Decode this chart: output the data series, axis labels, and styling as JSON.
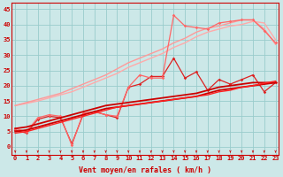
{
  "bg_color": "#cce8e8",
  "grid_color": "#99cccc",
  "xlabel": "Vent moyen/en rafales ( km/h )",
  "xlim": [
    -0.3,
    23.3
  ],
  "ylim": [
    -2.5,
    47
  ],
  "yticks": [
    0,
    5,
    10,
    15,
    20,
    25,
    30,
    35,
    40,
    45
  ],
  "x": [
    0,
    1,
    2,
    3,
    4,
    5,
    6,
    7,
    8,
    9,
    10,
    11,
    12,
    13,
    14,
    15,
    16,
    17,
    18,
    19,
    20,
    21,
    22,
    23
  ],
  "line_fan1": [
    13.5,
    14.2,
    15.0,
    16.0,
    17.0,
    18.0,
    19.5,
    21.0,
    22.5,
    24.0,
    26.0,
    27.5,
    29.0,
    30.5,
    32.5,
    34.0,
    36.0,
    37.5,
    38.5,
    39.5,
    40.0,
    41.0,
    40.5,
    35.0
  ],
  "line_fan1_color": "#ffaaaa",
  "line_fan1_lw": 1.0,
  "line_fan2": [
    13.5,
    14.5,
    15.5,
    16.5,
    17.5,
    19.0,
    20.5,
    22.0,
    23.5,
    25.5,
    27.5,
    29.0,
    30.5,
    32.0,
    34.0,
    35.5,
    37.5,
    38.8,
    39.5,
    40.5,
    41.5,
    41.5,
    38.5,
    33.5
  ],
  "line_fan2_color": "#ff9999",
  "line_fan2_lw": 1.0,
  "line_jagged1": [
    5.5,
    4.5,
    9.0,
    10.0,
    9.5,
    1.0,
    10.5,
    11.5,
    10.5,
    9.5,
    19.5,
    20.5,
    23.0,
    23.0,
    29.0,
    22.5,
    24.5,
    18.5,
    22.0,
    20.5,
    22.0,
    23.5,
    18.0,
    21.0
  ],
  "line_jagged1_color": "#dd2222",
  "line_jagged1_lw": 0.9,
  "line_jagged2": [
    6.0,
    5.0,
    9.5,
    10.5,
    10.0,
    0.5,
    11.0,
    11.5,
    10.5,
    10.0,
    19.5,
    23.5,
    22.5,
    22.5,
    43.0,
    39.5,
    39.0,
    38.5,
    40.5,
    41.0,
    41.5,
    41.5,
    38.0,
    34.0
  ],
  "line_jagged2_color": "#ff6666",
  "line_jagged2_lw": 0.9,
  "line_trend1": [
    5.0,
    5.5,
    6.5,
    7.5,
    8.5,
    9.5,
    10.5,
    11.5,
    12.5,
    13.0,
    13.5,
    14.0,
    14.5,
    15.0,
    15.5,
    16.0,
    16.5,
    17.5,
    18.5,
    19.0,
    19.5,
    20.0,
    20.5,
    21.0
  ],
  "line_trend1_color": "#cc0000",
  "line_trend1_lw": 1.3,
  "line_trend2": [
    6.0,
    6.5,
    7.5,
    8.5,
    9.5,
    10.5,
    11.5,
    12.5,
    13.5,
    14.0,
    14.5,
    15.0,
    15.5,
    16.0,
    16.5,
    17.0,
    17.5,
    18.5,
    19.5,
    20.0,
    20.5,
    21.0,
    21.0,
    21.0
  ],
  "line_trend2_color": "#cc0000",
  "line_trend2_lw": 1.3,
  "line_trend3": [
    4.5,
    5.0,
    6.0,
    7.0,
    8.0,
    9.0,
    10.0,
    11.0,
    12.0,
    13.0,
    13.5,
    14.0,
    14.5,
    15.0,
    15.5,
    16.0,
    16.5,
    17.0,
    18.0,
    18.5,
    19.5,
    20.0,
    20.8,
    21.5
  ],
  "line_trend3_color": "#ff2222",
  "line_trend3_lw": 1.0,
  "arrow_color": "#cc0000",
  "axis_color": "#cc0000",
  "tick_fontsize": 5,
  "xlabel_fontsize": 6
}
